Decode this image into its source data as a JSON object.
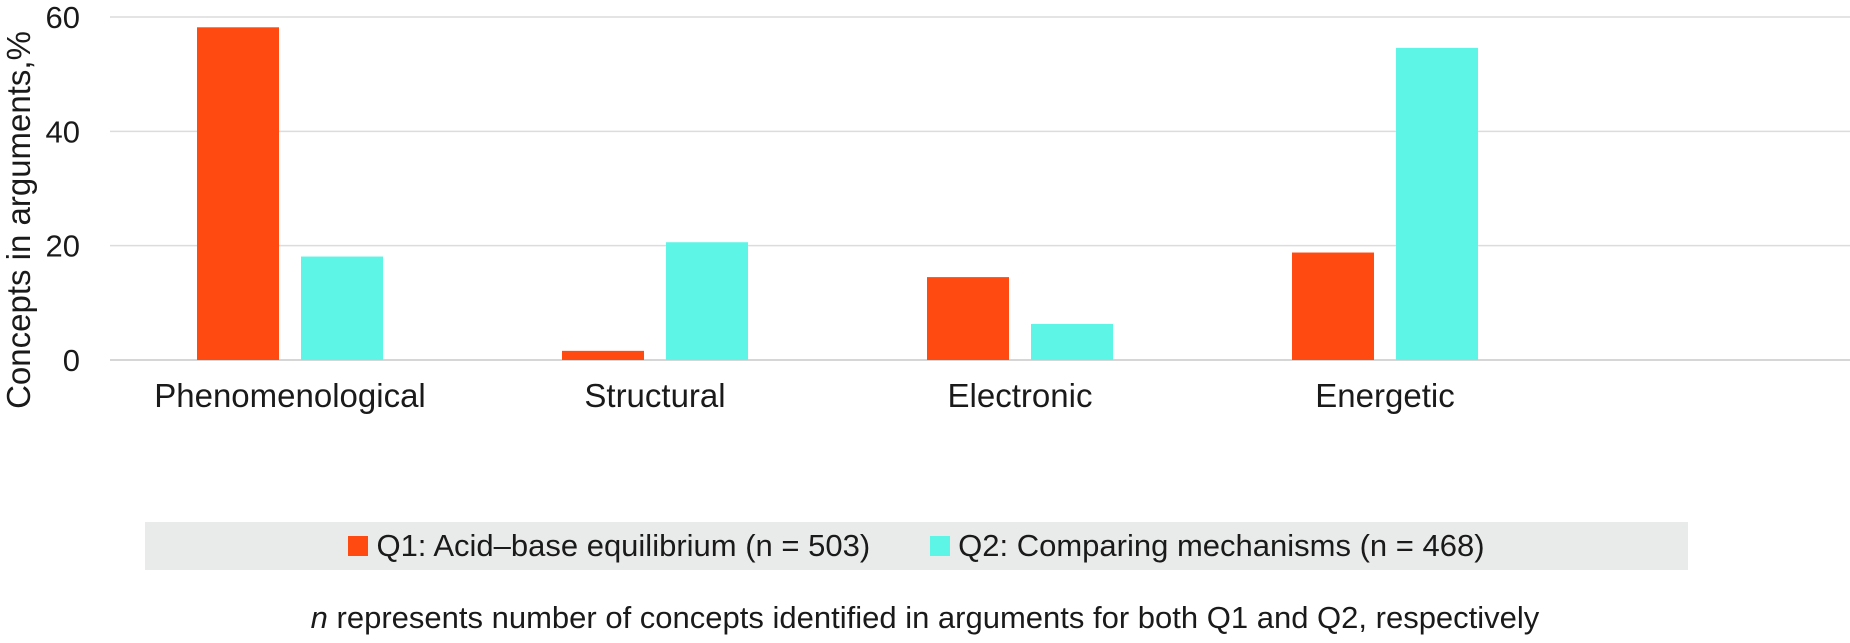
{
  "chart_data": {
    "type": "bar",
    "categories": [
      "Phenomenological",
      "Structural",
      "Electronic",
      "Energetic"
    ],
    "series": [
      {
        "name": "Q1: Acid–base equilibrium (n = 503)",
        "color": "#ff4a12",
        "values": [
          58.2,
          1.6,
          14.5,
          18.8
        ]
      },
      {
        "name": "Q2: Comparing mechanisms (n = 468)",
        "color": "#5cf5e6",
        "values": [
          18.1,
          20.6,
          6.3,
          54.6
        ]
      }
    ],
    "ylabel": "Concepts in arguments,%",
    "xlabel": "",
    "ylim": [
      0,
      60
    ],
    "yticks": [
      "0",
      "20",
      "40",
      "60"
    ],
    "grid": true,
    "legend_position": "bottom"
  },
  "footnote": {
    "var": "n",
    "text": " represents number of concepts identified in arguments for both Q1 and Q2, respectively"
  }
}
